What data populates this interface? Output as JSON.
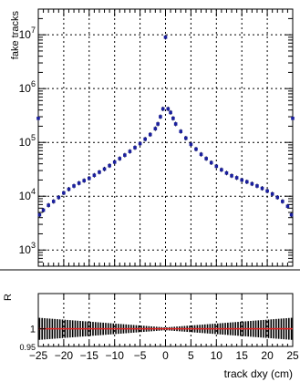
{
  "chart_data": [
    {
      "type": "scatter",
      "panel": "top",
      "ylabel": "fake tracks",
      "xlim": [
        -25,
        25
      ],
      "ylim": [
        500,
        30000000
      ],
      "yscale": "log",
      "grid": true,
      "ytick_labels": [
        {
          "base": "10",
          "exp": "3",
          "value": 1000
        },
        {
          "base": "10",
          "exp": "4",
          "value": 10000
        },
        {
          "base": "10",
          "exp": "5",
          "value": 100000
        },
        {
          "base": "10",
          "exp": "6",
          "value": 1000000
        },
        {
          "base": "10",
          "exp": "7",
          "value": 10000000
        }
      ],
      "series": [
        {
          "color": "#1a1f9e",
          "points": [
            [
              -24.75,
              4500
            ],
            [
              -24,
              5500
            ],
            [
              -23,
              6800
            ],
            [
              -22,
              8000
            ],
            [
              -21,
              9500
            ],
            [
              -20,
              11500
            ],
            [
              -19,
              13500
            ],
            [
              -18,
              15500
            ],
            [
              -17,
              17500
            ],
            [
              -16,
              19500
            ],
            [
              -15,
              21500
            ],
            [
              -14,
              24500
            ],
            [
              -13,
              28000
            ],
            [
              -12,
              32000
            ],
            [
              -11,
              37000
            ],
            [
              -10,
              43000
            ],
            [
              -9,
              50000
            ],
            [
              -8,
              58000
            ],
            [
              -7,
              68000
            ],
            [
              -6,
              80000
            ],
            [
              -5,
              95000
            ],
            [
              -4,
              115000
            ],
            [
              -3,
              140000
            ],
            [
              -2,
              180000
            ],
            [
              -1.5,
              220000
            ],
            [
              -1,
              300000
            ],
            [
              -0.5,
              420000
            ],
            [
              0,
              9000000
            ],
            [
              0.5,
              420000
            ],
            [
              1,
              360000
            ],
            [
              1.5,
              280000
            ],
            [
              2,
              220000
            ],
            [
              3,
              160000
            ],
            [
              4,
              120000
            ],
            [
              5,
              92000
            ],
            [
              6,
              75000
            ],
            [
              7,
              60000
            ],
            [
              8,
              50000
            ],
            [
              9,
              42000
            ],
            [
              10,
              36000
            ],
            [
              11,
              31000
            ],
            [
              12,
              27000
            ],
            [
              13,
              24000
            ],
            [
              14,
              22000
            ],
            [
              15,
              20000
            ],
            [
              16,
              18500
            ],
            [
              17,
              17000
            ],
            [
              18,
              15500
            ],
            [
              19,
              14000
            ],
            [
              20,
              12500
            ],
            [
              21,
              11000
            ],
            [
              22,
              9500
            ],
            [
              23,
              8000
            ],
            [
              24,
              6500
            ],
            [
              24.75,
              4500
            ]
          ]
        }
      ],
      "edge_points": [
        [
          -25,
          280000
        ],
        [
          25,
          280000
        ]
      ]
    },
    {
      "type": "scatter",
      "panel": "bottom",
      "ylabel": "R",
      "xlabel": "track dxy (cm)",
      "xlim": [
        -25,
        25
      ],
      "ylim": [
        0.95,
        1.1
      ],
      "grid": true,
      "xtick_labels": [
        "−25",
        "−20",
        "−15",
        "−10",
        "−5",
        "0",
        "5",
        "10",
        "15",
        "20",
        "25"
      ],
      "xtick_values": [
        -25,
        -20,
        -15,
        -10,
        -5,
        0,
        5,
        10,
        15,
        20,
        25
      ],
      "ytick_labels": [
        {
          "text": "1",
          "value": 1.0
        },
        {
          "text": "0.95",
          "value": 0.95
        }
      ],
      "ratio_value": 1.0,
      "ratio_line_color": "#e02020",
      "error_color": "#000000"
    }
  ]
}
